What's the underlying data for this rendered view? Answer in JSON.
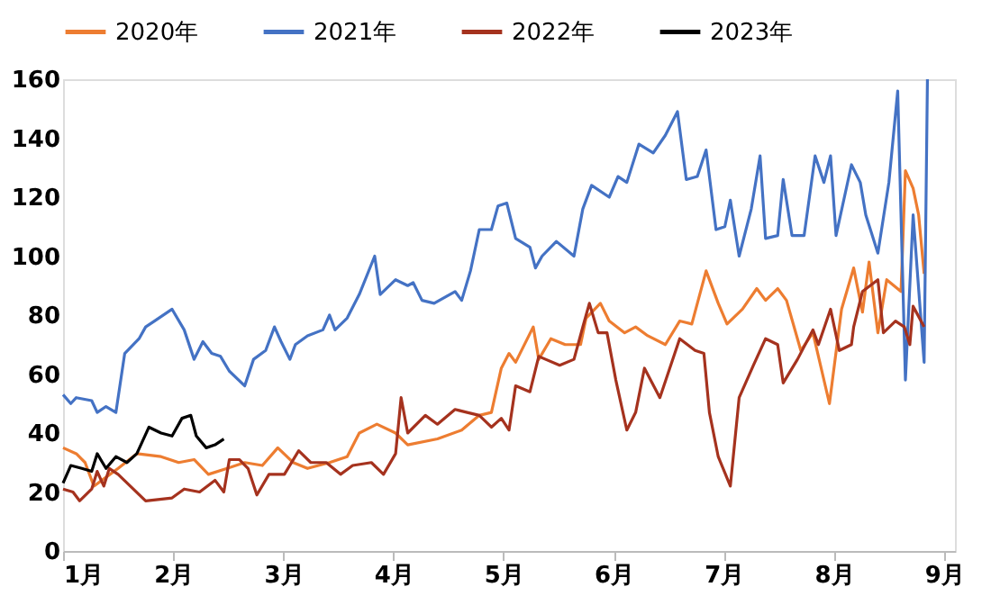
{
  "chart_data": {
    "type": "line",
    "xlim": [
      1,
      9.1
    ],
    "xticks": [
      {
        "value": 1,
        "label": "1月"
      },
      {
        "value": 2,
        "label": "2月"
      },
      {
        "value": 3,
        "label": "3月"
      },
      {
        "value": 4,
        "label": "4月"
      },
      {
        "value": 5,
        "label": "5月"
      },
      {
        "value": 6,
        "label": "6月"
      },
      {
        "value": 7,
        "label": "7月"
      },
      {
        "value": 8,
        "label": "8月"
      },
      {
        "value": 9,
        "label": "9月"
      }
    ],
    "ylim": [
      0,
      160
    ],
    "yticks": [
      0,
      20,
      40,
      60,
      80,
      100,
      120,
      140,
      160
    ],
    "grid": false,
    "legend": "top",
    "marker": "none",
    "line_style": "solid",
    "series": [
      {
        "name": "2020年",
        "color": "#ed7d31",
        "x": [
          1.0,
          1.12,
          1.2,
          1.28,
          1.39,
          1.5,
          1.67,
          1.89,
          2.05,
          2.19,
          2.32,
          2.49,
          2.65,
          2.81,
          2.95,
          3.09,
          3.22,
          3.42,
          3.58,
          3.69,
          3.85,
          4.02,
          4.13,
          4.4,
          4.62,
          4.78,
          4.89,
          4.98,
          5.05,
          5.11,
          5.27,
          5.32,
          5.43,
          5.56,
          5.7,
          5.75,
          5.88,
          5.96,
          6.1,
          6.2,
          6.31,
          6.47,
          6.6,
          6.71,
          6.84,
          6.95,
          7.03,
          7.17,
          7.3,
          7.38,
          7.49,
          7.57,
          7.7,
          7.81,
          7.96,
          8.07,
          8.18,
          8.26,
          8.32,
          8.4,
          8.48,
          8.61,
          8.65,
          8.72,
          8.77,
          8.82
        ],
        "values": [
          35,
          33,
          30,
          22,
          25,
          28,
          33,
          32,
          30,
          31,
          26,
          28,
          30,
          29,
          35,
          30,
          28,
          30,
          32,
          40,
          43,
          40,
          36,
          38,
          41,
          46,
          47,
          62,
          67,
          64,
          76,
          65,
          72,
          70,
          70,
          79,
          84,
          78,
          74,
          76,
          73,
          70,
          78,
          77,
          95,
          84,
          77,
          82,
          89,
          85,
          89,
          85,
          68,
          74,
          50,
          82,
          96,
          81,
          98,
          74,
          92,
          88,
          129,
          123,
          114,
          94
        ]
      },
      {
        "name": "2021年",
        "color": "#4472c4",
        "x": [
          1.0,
          1.07,
          1.12,
          1.26,
          1.31,
          1.39,
          1.48,
          1.56,
          1.69,
          1.75,
          1.83,
          1.99,
          2.1,
          2.19,
          2.27,
          2.35,
          2.43,
          2.51,
          2.65,
          2.73,
          2.84,
          2.92,
          2.98,
          3.06,
          3.11,
          3.22,
          3.36,
          3.42,
          3.47,
          3.58,
          3.69,
          3.83,
          3.88,
          4.02,
          4.13,
          4.18,
          4.26,
          4.37,
          4.56,
          4.62,
          4.7,
          4.78,
          4.89,
          4.95,
          5.03,
          5.11,
          5.24,
          5.29,
          5.35,
          5.48,
          5.64,
          5.72,
          5.8,
          5.96,
          6.04,
          6.12,
          6.23,
          6.36,
          6.47,
          6.58,
          6.66,
          6.76,
          6.84,
          6.93,
          7.01,
          7.06,
          7.14,
          7.25,
          7.33,
          7.38,
          7.49,
          7.54,
          7.62,
          7.73,
          7.83,
          7.91,
          7.97,
          8.02,
          8.16,
          8.24,
          8.29,
          8.4,
          8.5,
          8.58,
          8.65,
          8.72,
          8.82,
          8.85
        ],
        "values": [
          53,
          50,
          52,
          51,
          47,
          49,
          47,
          67,
          72,
          76,
          78,
          82,
          75,
          65,
          71,
          67,
          66,
          61,
          56,
          65,
          68,
          76,
          71,
          65,
          70,
          73,
          75,
          80,
          75,
          79,
          87,
          100,
          87,
          92,
          90,
          91,
          85,
          84,
          88,
          85,
          95,
          109,
          109,
          117,
          118,
          106,
          103,
          96,
          100,
          105,
          100,
          116,
          124,
          120,
          127,
          125,
          138,
          135,
          141,
          149,
          126,
          127,
          136,
          109,
          110,
          119,
          100,
          116,
          134,
          106,
          107,
          126,
          107,
          107,
          134,
          125,
          134,
          107,
          131,
          125,
          114,
          101,
          125,
          156,
          58,
          114,
          64,
          160
        ]
      },
      {
        "name": "2022年",
        "color": "#a5321e",
        "x": [
          1.0,
          1.09,
          1.15,
          1.26,
          1.31,
          1.37,
          1.42,
          1.5,
          1.61,
          1.75,
          1.99,
          2.1,
          2.24,
          2.38,
          2.46,
          2.51,
          2.6,
          2.68,
          2.76,
          2.87,
          3.01,
          3.14,
          3.25,
          3.39,
          3.52,
          3.63,
          3.8,
          3.91,
          4.02,
          4.07,
          4.13,
          4.29,
          4.4,
          4.56,
          4.67,
          4.78,
          4.89,
          4.98,
          5.05,
          5.11,
          5.24,
          5.32,
          5.51,
          5.64,
          5.72,
          5.78,
          5.86,
          5.94,
          6.02,
          6.12,
          6.2,
          6.28,
          6.42,
          6.6,
          6.74,
          6.82,
          6.87,
          6.95,
          7.06,
          7.14,
          7.27,
          7.38,
          7.49,
          7.54,
          7.67,
          7.81,
          7.86,
          7.97,
          8.05,
          8.16,
          8.18,
          8.26,
          8.4,
          8.45,
          8.56,
          8.64,
          8.69,
          8.72,
          8.82
        ],
        "values": [
          21,
          20,
          17,
          21,
          27,
          22,
          28,
          26,
          22,
          17,
          18,
          21,
          20,
          24,
          20,
          31,
          31,
          28,
          19,
          26,
          26,
          34,
          30,
          30,
          26,
          29,
          30,
          26,
          33,
          52,
          40,
          46,
          43,
          48,
          47,
          46,
          42,
          45,
          41,
          56,
          54,
          66,
          63,
          65,
          76,
          84,
          74,
          74,
          58,
          41,
          47,
          62,
          52,
          72,
          68,
          67,
          47,
          32,
          22,
          52,
          63,
          72,
          70,
          57,
          65,
          75,
          70,
          82,
          68,
          70,
          76,
          88,
          92,
          74,
          78,
          76,
          70,
          83,
          76
        ]
      },
      {
        "name": "2023年",
        "color": "#000000",
        "x": [
          1.0,
          1.07,
          1.17,
          1.26,
          1.31,
          1.39,
          1.48,
          1.58,
          1.67,
          1.78,
          1.89,
          1.99,
          2.08,
          2.16,
          2.21,
          2.3,
          2.38,
          2.46
        ],
        "values": [
          23,
          29,
          28,
          27,
          33,
          28,
          32,
          30,
          33,
          42,
          40,
          39,
          45,
          46,
          39,
          35,
          36,
          38
        ]
      }
    ]
  }
}
